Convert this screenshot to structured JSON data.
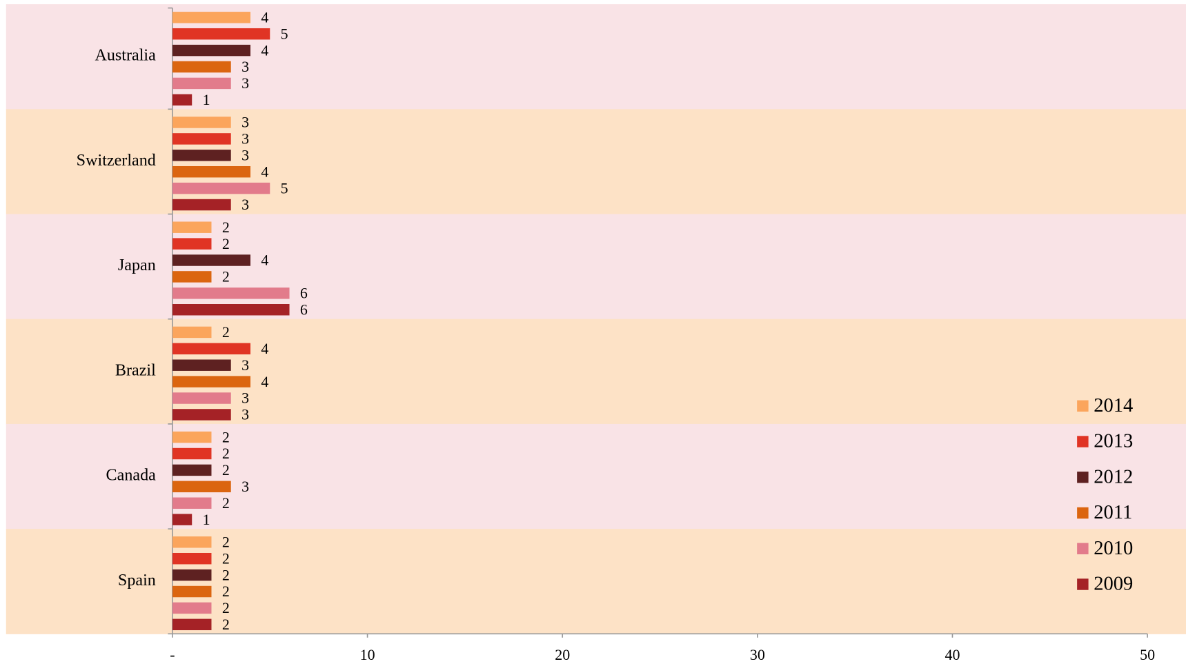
{
  "chart_data": {
    "type": "bar",
    "orientation": "horizontal",
    "categories": [
      "Australia",
      "Switzerland",
      "Japan",
      "Brazil",
      "Canada",
      "Spain"
    ],
    "series": [
      {
        "name": "2014",
        "color": "#fba55c",
        "values": [
          4,
          3,
          2,
          2,
          2,
          2
        ]
      },
      {
        "name": "2013",
        "color": "#e03424",
        "values": [
          5,
          3,
          2,
          4,
          2,
          2
        ]
      },
      {
        "name": "2012",
        "color": "#5e2121",
        "values": [
          4,
          3,
          4,
          3,
          2,
          2
        ]
      },
      {
        "name": "2011",
        "color": "#db6510",
        "values": [
          3,
          4,
          2,
          4,
          3,
          2
        ]
      },
      {
        "name": "2010",
        "color": "#e27b8b",
        "values": [
          3,
          5,
          6,
          3,
          2,
          2
        ]
      },
      {
        "name": "2009",
        "color": "#a52226",
        "values": [
          1,
          3,
          6,
          3,
          1,
          2
        ]
      }
    ],
    "xlim": [
      0,
      50
    ],
    "xticks": [
      {
        "value": 0,
        "label": "-"
      },
      10,
      20,
      30,
      40,
      50
    ],
    "legend": "right"
  }
}
